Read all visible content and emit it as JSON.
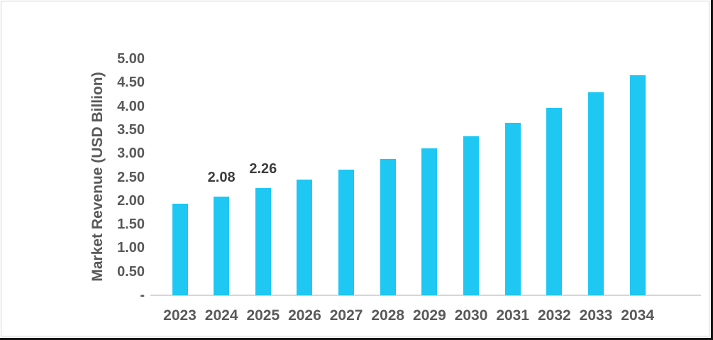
{
  "chart_data": {
    "type": "bar",
    "title": "",
    "xlabel": "",
    "ylabel": "Market Revenue (USD Billion)",
    "categories": [
      "2023",
      "2024",
      "2025",
      "2026",
      "2027",
      "2028",
      "2029",
      "2030",
      "2031",
      "2032",
      "2033",
      "2034"
    ],
    "values": [
      1.93,
      2.08,
      2.26,
      2.45,
      2.66,
      2.88,
      3.11,
      3.37,
      3.65,
      3.97,
      4.29,
      4.66
    ],
    "data_labels": [
      "",
      "2.08",
      "2.26",
      "",
      "",
      "",
      "",
      "",
      "",
      "",
      "",
      ""
    ],
    "ylim": [
      0,
      5
    ],
    "ytick_step": 0.5,
    "yticks": [
      {
        "value": 5.0,
        "label": "5.00"
      },
      {
        "value": 4.5,
        "label": "4.50"
      },
      {
        "value": 4.0,
        "label": "4.00"
      },
      {
        "value": 3.5,
        "label": "3.50"
      },
      {
        "value": 3.0,
        "label": "3.00"
      },
      {
        "value": 2.5,
        "label": "2.50"
      },
      {
        "value": 2.0,
        "label": "2.00"
      },
      {
        "value": 1.5,
        "label": "1.50"
      },
      {
        "value": 1.0,
        "label": "1.00"
      },
      {
        "value": 0.5,
        "label": "0.50"
      },
      {
        "value": 0.0,
        "label": "-"
      }
    ],
    "grid": false,
    "legend": "none",
    "colors": {
      "bar": "#1fc7f3",
      "axis_line": "#d6d6d6",
      "tick_labels": "#595959",
      "data_labels": "#3d3d3d"
    }
  }
}
